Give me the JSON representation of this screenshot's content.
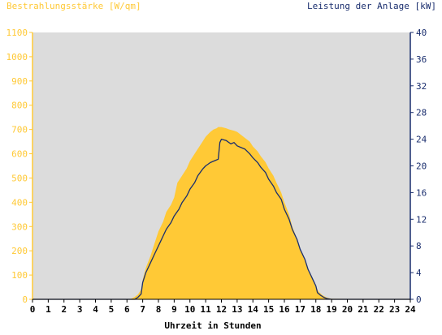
{
  "chart_data": {
    "type": "area",
    "title_left": "Bestrahlungsstärke [W/qm]",
    "title_right": "Leistung der Anlage [kW]",
    "xlabel": "Uhrzeit in Stunden",
    "xlim": [
      0,
      24
    ],
    "x_ticks": [
      "0",
      "1",
      "2",
      "3",
      "4",
      "5",
      "6",
      "7",
      "8",
      "9",
      "10",
      "11",
      "12",
      "13",
      "14",
      "15",
      "16",
      "17",
      "18",
      "19",
      "20",
      "21",
      "22",
      "23",
      "24"
    ],
    "y_left": {
      "range": [
        0,
        1100
      ],
      "ticks": [
        "0",
        "100",
        "200",
        "300",
        "400",
        "500",
        "600",
        "700",
        "800",
        "900",
        "1000",
        "1100"
      ]
    },
    "y_right": {
      "range": [
        0,
        40
      ],
      "ticks": [
        "0",
        "4",
        "8",
        "12",
        "16",
        "20",
        "24",
        "28",
        "32",
        "36",
        "40"
      ]
    },
    "grid": false,
    "colors": {
      "plot_bg": "#dcdcdc",
      "irradiance": "#ffc936",
      "power": "#1a2e6e",
      "left_axis": "#ffc936",
      "right_axis": "#1a2e6e"
    },
    "series": [
      {
        "name": "Bestrahlungsstärke [W/qm]",
        "axis": "left",
        "x": [
          0,
          6.2,
          6.5,
          6.7,
          6.9,
          7.0,
          7.2,
          7.5,
          7.8,
          8.0,
          8.3,
          8.5,
          8.8,
          9.0,
          9.2,
          9.5,
          9.8,
          10.0,
          10.3,
          10.5,
          10.8,
          11.0,
          11.3,
          11.5,
          11.7,
          11.8,
          12.0,
          12.3,
          12.5,
          12.8,
          13.0,
          13.2,
          13.5,
          13.8,
          14.0,
          14.3,
          14.5,
          14.8,
          15.0,
          15.3,
          15.5,
          15.8,
          16.0,
          16.3,
          16.5,
          16.8,
          17.0,
          17.3,
          17.5,
          17.8,
          18.0,
          18.2,
          18.4,
          18.6,
          18.8,
          19.0,
          24
        ],
        "values": [
          0,
          0,
          10,
          20,
          40,
          80,
          130,
          180,
          240,
          280,
          320,
          360,
          390,
          420,
          480,
          510,
          540,
          570,
          600,
          620,
          650,
          670,
          690,
          700,
          705,
          710,
          710,
          705,
          700,
          695,
          690,
          680,
          665,
          650,
          630,
          610,
          590,
          565,
          540,
          510,
          480,
          440,
          400,
          350,
          300,
          250,
          210,
          160,
          120,
          80,
          50,
          30,
          18,
          10,
          5,
          2,
          0
        ]
      },
      {
        "name": "Leistung der Anlage [kW]",
        "axis": "right",
        "x": [
          0,
          6.5,
          6.7,
          6.9,
          7.0,
          7.2,
          7.5,
          7.8,
          8.0,
          8.3,
          8.5,
          8.8,
          9.0,
          9.3,
          9.5,
          9.8,
          10.0,
          10.3,
          10.5,
          10.8,
          11.0,
          11.3,
          11.6,
          11.8,
          11.9,
          12.0,
          12.3,
          12.6,
          12.8,
          13.0,
          13.2,
          13.5,
          13.8,
          14.0,
          14.3,
          14.5,
          14.8,
          15.0,
          15.3,
          15.5,
          15.8,
          16.0,
          16.3,
          16.5,
          16.8,
          17.0,
          17.3,
          17.5,
          17.8,
          18.0,
          18.1,
          18.3,
          18.5,
          18.7,
          19.0,
          24
        ],
        "values": [
          0,
          0,
          0.3,
          0.8,
          2.5,
          4.0,
          5.5,
          7.0,
          8.0,
          9.5,
          10.5,
          11.5,
          12.5,
          13.5,
          14.5,
          15.5,
          16.5,
          17.5,
          18.5,
          19.5,
          20.0,
          20.5,
          20.8,
          21.0,
          23.5,
          24.0,
          23.8,
          23.3,
          23.5,
          23.0,
          22.8,
          22.5,
          21.8,
          21.2,
          20.5,
          19.8,
          19.0,
          18.0,
          17.0,
          16.0,
          15.0,
          13.5,
          12.0,
          10.5,
          9.0,
          7.5,
          6.0,
          4.5,
          3.0,
          2.0,
          1.0,
          0.6,
          0.3,
          0.1,
          0,
          0
        ]
      }
    ]
  }
}
